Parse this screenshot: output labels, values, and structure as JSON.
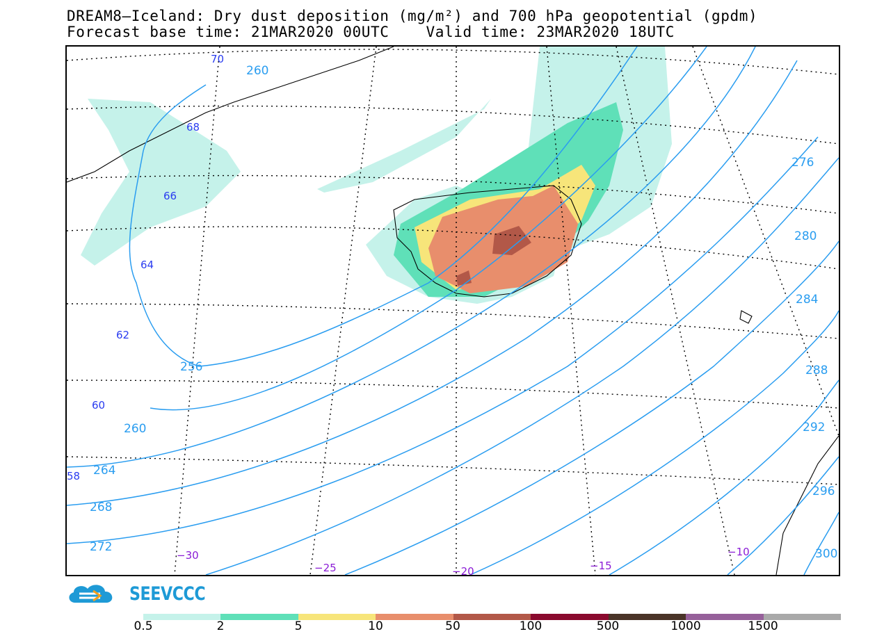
{
  "header": {
    "title_line1": "DREAM8—Iceland: Dry dust deposition (mg/m²) and 700 hPa geopotential (gpdm)",
    "title_line2": "Forecast base time: 21MAR2020 00UTC    Valid time: 23MAR2020 18UTC"
  },
  "map": {
    "latitude_labels": [
      "70",
      "68",
      "66",
      "64",
      "62",
      "60",
      "58"
    ],
    "longitude_labels": [
      "−30",
      "−25",
      "−20",
      "−15",
      "−10"
    ],
    "geopotential_labels": [
      "260",
      "256",
      "260",
      "264",
      "268",
      "272",
      "276",
      "280",
      "284",
      "288",
      "292",
      "296",
      "300"
    ],
    "colors": {
      "graticule": "#000000",
      "coastline": "#000000",
      "geopotential_contour": "#2a9df0",
      "latitude_label": "#2a3cf0",
      "longitude_label": "#8a1bd6"
    }
  },
  "logo": {
    "text": "SEEVCCC",
    "icon": "cloud-arrow-icon",
    "color": "#1e9ad6"
  },
  "legend": {
    "unit": "mg/m²",
    "ticks": [
      "0.5",
      "2",
      "5",
      "10",
      "50",
      "100",
      "500",
      "1000",
      "1500"
    ],
    "colors": [
      "#c5f2ea",
      "#5fe0b8",
      "#f7e57a",
      "#e88e6c",
      "#b25848",
      "#8a0a2e",
      "#4a3428",
      "#96609a",
      "#a9a9a9"
    ]
  }
}
